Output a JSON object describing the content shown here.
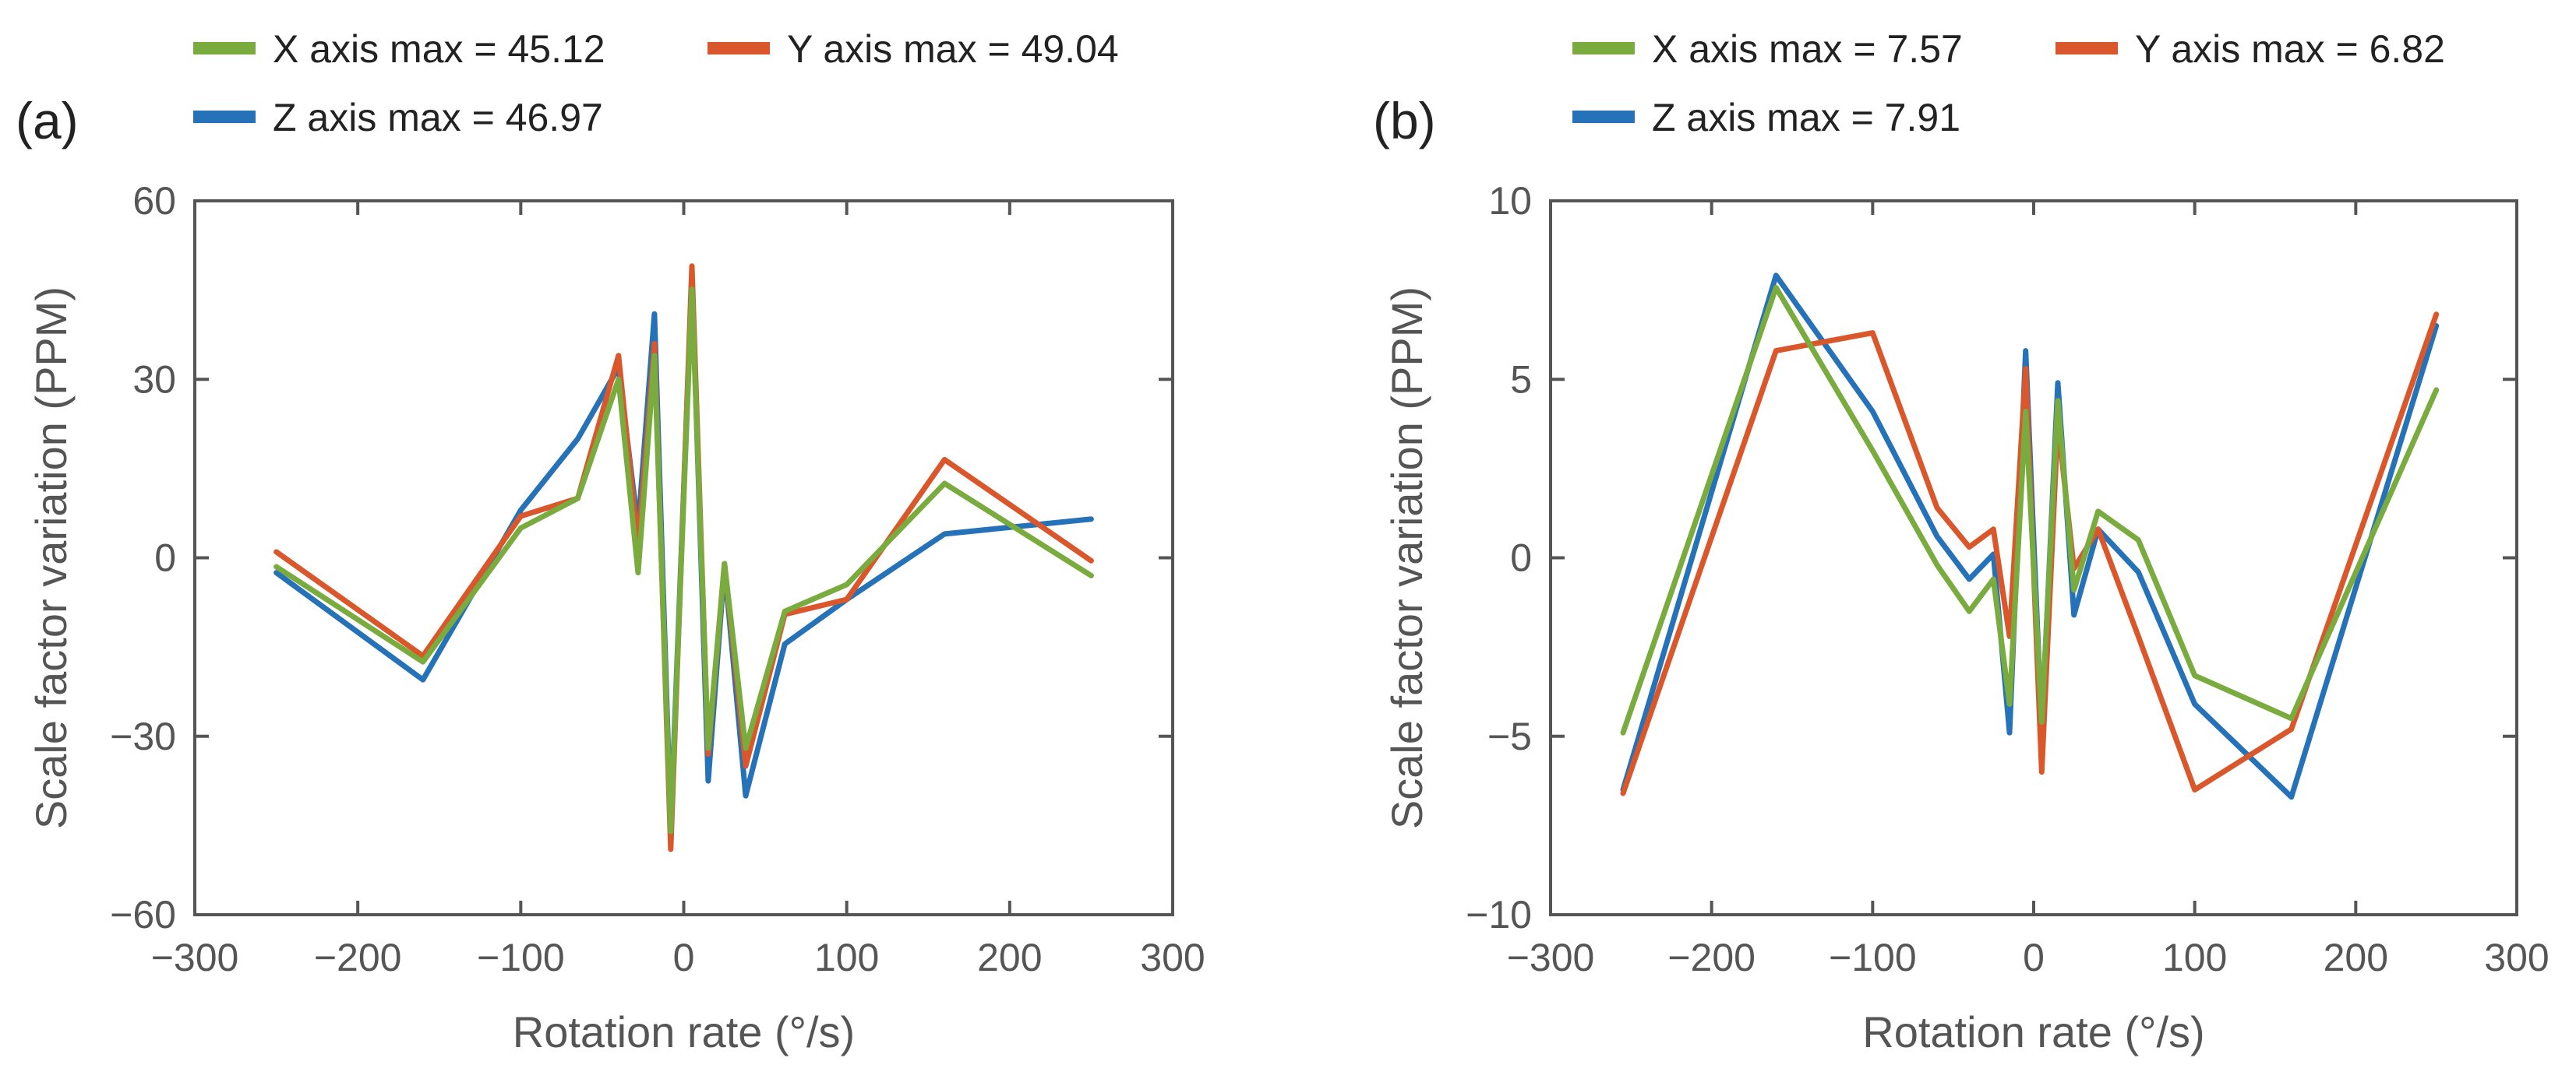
{
  "figure": {
    "colors": {
      "x_axis": "#7aab3e",
      "y_axis": "#d9572b",
      "z_axis": "#2572b8",
      "frame": "#555555"
    }
  },
  "chart_data": [
    {
      "type": "line",
      "panel_label": "(a)",
      "xlabel": "Rotation rate (°/s)",
      "ylabel": "Scale factor variation (PPM)",
      "xlim": [
        -300,
        300
      ],
      "ylim": [
        -60,
        60
      ],
      "xticks": [
        -300,
        -200,
        -100,
        0,
        100,
        200,
        300
      ],
      "yticks": [
        -60,
        -30,
        0,
        30,
        60
      ],
      "xtick_labels": [
        "−300",
        "−200",
        "−100",
        "0",
        "100",
        "200",
        "300"
      ],
      "ytick_labels": [
        "−60",
        "−30",
        "0",
        "30",
        "60"
      ],
      "legend": [
        "X axis max = 45.12",
        "Y axis max = 49.04",
        "Z axis max = 46.97"
      ],
      "series": [
        {
          "name": "X axis",
          "color": "#7aab3e",
          "x": [
            -250,
            -160,
            -100,
            -65,
            -40,
            -28,
            -18,
            -8,
            5,
            15,
            25,
            38,
            62,
            100,
            160,
            250
          ],
          "y": [
            -1.5,
            -17.5,
            5,
            10,
            30,
            -2.5,
            34,
            -46,
            45.12,
            -32,
            -1,
            -32,
            -9,
            -4.5,
            12.5,
            -3
          ]
        },
        {
          "name": "Y axis",
          "color": "#d9572b",
          "x": [
            -250,
            -160,
            -100,
            -65,
            -40,
            -28,
            -18,
            -8,
            5,
            15,
            25,
            38,
            62,
            100,
            160,
            250
          ],
          "y": [
            1,
            -16.5,
            7,
            10,
            34,
            2,
            36,
            -49,
            49.04,
            -33,
            -1,
            -35,
            -9.5,
            -7,
            16.5,
            -0.5
          ]
        },
        {
          "name": "Z axis",
          "color": "#2572b8",
          "x": [
            -250,
            -160,
            -100,
            -65,
            -40,
            -28,
            -18,
            -8,
            5,
            15,
            25,
            38,
            62,
            100,
            160,
            250
          ],
          "y": [
            -2.5,
            -20.5,
            8,
            20,
            32,
            5,
            41,
            -45,
            46.97,
            -37.5,
            -1.5,
            -40,
            -14.5,
            -7,
            4,
            6.5
          ]
        }
      ]
    },
    {
      "type": "line",
      "panel_label": "(b)",
      "xlabel": "Rotation rate (°/s)",
      "ylabel": "Scale factor variation (PPM)",
      "xlim": [
        -300,
        300
      ],
      "ylim": [
        -10,
        10
      ],
      "xticks": [
        -300,
        -200,
        -100,
        0,
        100,
        200,
        300
      ],
      "yticks": [
        -10,
        -5,
        0,
        5,
        10
      ],
      "xtick_labels": [
        "−300",
        "−200",
        "−100",
        "0",
        "100",
        "200",
        "300"
      ],
      "ytick_labels": [
        "−10",
        "−5",
        "0",
        "5",
        "10"
      ],
      "legend": [
        "X axis max = 7.57",
        "Y axis max = 6.82",
        "Z axis max = 7.91"
      ],
      "series": [
        {
          "name": "X axis",
          "color": "#7aab3e",
          "x": [
            -255,
            -160,
            -100,
            -60,
            -40,
            -25,
            -15,
            -5,
            5,
            15,
            25,
            40,
            65,
            100,
            160,
            250
          ],
          "y": [
            -4.9,
            7.57,
            3,
            -0.2,
            -1.5,
            -0.6,
            -4.1,
            4.1,
            -4.6,
            4.4,
            -0.9,
            1.3,
            0.5,
            -3.3,
            -4.5,
            4.7
          ]
        },
        {
          "name": "Y axis",
          "color": "#d9572b",
          "x": [
            -255,
            -160,
            -100,
            -60,
            -40,
            -25,
            -15,
            -5,
            5,
            15,
            25,
            40,
            65,
            100,
            160,
            250
          ],
          "y": [
            -6.6,
            5.8,
            6.3,
            1.4,
            0.3,
            0.8,
            -2.2,
            5.3,
            -6.0,
            3.8,
            -0.3,
            0.8,
            -2.2,
            -6.5,
            -4.8,
            6.82
          ]
        },
        {
          "name": "Z axis",
          "color": "#2572b8",
          "x": [
            -255,
            -160,
            -100,
            -60,
            -40,
            -25,
            -15,
            -5,
            5,
            15,
            25,
            40,
            65,
            100,
            160,
            250
          ],
          "y": [
            -6.5,
            7.91,
            4.1,
            0.6,
            -0.6,
            0.1,
            -4.9,
            5.8,
            -4.8,
            4.9,
            -1.6,
            0.8,
            -0.4,
            -4.1,
            -6.7,
            6.5
          ]
        }
      ]
    }
  ]
}
